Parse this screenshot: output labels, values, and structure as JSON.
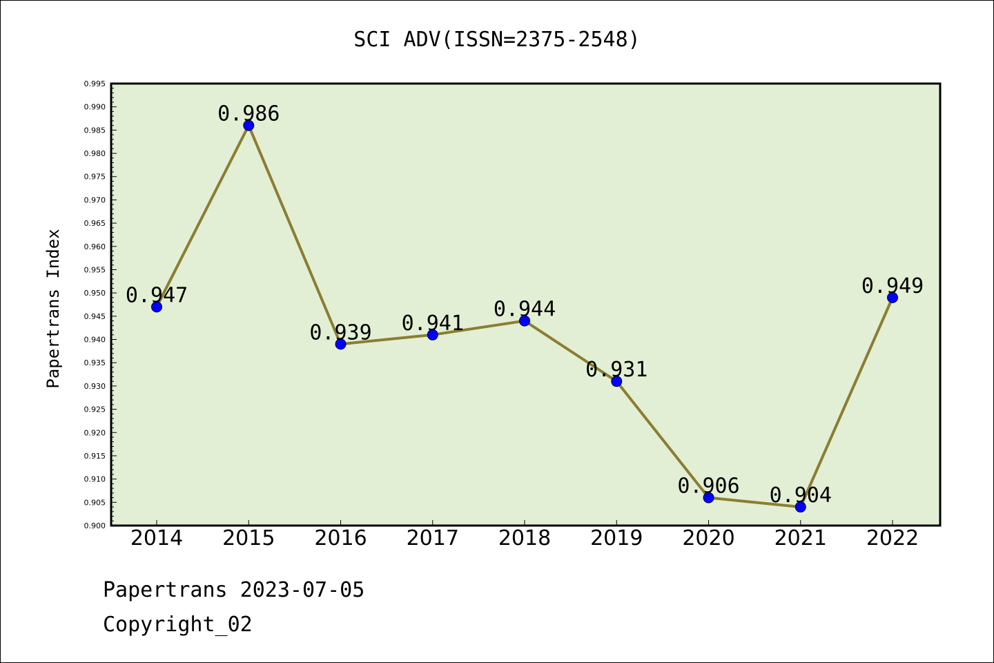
{
  "chart_data": {
    "type": "line",
    "title": "SCI ADV(ISSN=2375-2548)",
    "ylabel": "Papertrans Index",
    "xlabel": "",
    "categories": [
      "2014",
      "2015",
      "2016",
      "2017",
      "2018",
      "2019",
      "2020",
      "2021",
      "2022"
    ],
    "values": [
      0.947,
      0.986,
      0.939,
      0.941,
      0.944,
      0.931,
      0.906,
      0.904,
      0.949
    ],
    "data_labels": [
      "0.947",
      "0.986",
      "0.939",
      "0.941",
      "0.944",
      "0.931",
      "0.906",
      "0.904",
      "0.949"
    ],
    "ylim": [
      0.9,
      0.995
    ],
    "yticks": [
      "0.900",
      "0.905",
      "0.910",
      "0.915",
      "0.920",
      "0.925",
      "0.930",
      "0.935",
      "0.940",
      "0.945",
      "0.950",
      "0.955",
      "0.960",
      "0.965",
      "0.970",
      "0.975",
      "0.980",
      "0.985",
      "0.990",
      "0.995"
    ],
    "grid": false,
    "line_color": "#8b7d32",
    "marker_color": "#0000ff",
    "plot_background": "#e2efd4"
  },
  "footer": {
    "line1": "Papertrans 2023-07-05",
    "line2": "Copyright_02"
  }
}
